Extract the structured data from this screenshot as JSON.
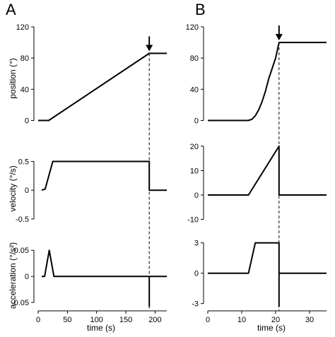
{
  "panels": [
    {
      "letter": "A",
      "xlabel": "time (s)"
    },
    {
      "letter": "B",
      "xlabel": "time (s)"
    }
  ],
  "row_labels": [
    "position (°)",
    "velocity (°/s)",
    "acceleration (°/s²)"
  ],
  "colors": {
    "line": "#000000",
    "background": "#ffffff"
  },
  "chart_data": [
    {
      "type": "line",
      "panel": "A",
      "row": "position",
      "ylabel": "position (°)",
      "xlabel": "",
      "xlim": [
        0,
        220
      ],
      "ylim": [
        -5,
        120
      ],
      "xticks": [
        0,
        50,
        100,
        150,
        200
      ],
      "xtick_labels": [],
      "yticks": [
        0,
        40,
        80,
        120
      ],
      "ytick_labels": [
        "0",
        "40",
        "80",
        "120"
      ],
      "series": [
        {
          "x": [
            0,
            10,
            18,
            190,
            220
          ],
          "y": [
            0,
            0,
            0,
            86,
            86
          ]
        }
      ],
      "marker": {
        "x": 190,
        "label": "arrow"
      }
    },
    {
      "type": "line",
      "panel": "A",
      "row": "velocity",
      "ylabel": "velocity (°/s)",
      "xlabel": "",
      "xlim": [
        0,
        220
      ],
      "ylim": [
        -0.55,
        0.85
      ],
      "xticks": [
        0,
        50,
        100,
        150,
        200
      ],
      "xtick_labels": [],
      "yticks": [
        -0.5,
        0,
        0.5
      ],
      "ytick_labels": [
        "-0.5",
        "0",
        "0.5"
      ],
      "series": [
        {
          "x": [
            6,
            12,
            25,
            190,
            190,
            220
          ],
          "y": [
            0,
            0.02,
            0.5,
            0.5,
            0,
            0
          ]
        }
      ],
      "marker": {
        "x": 190
      }
    },
    {
      "type": "line",
      "panel": "A",
      "row": "acceleration",
      "ylabel": "acceleration (°/s²)",
      "xlabel": "time (s)",
      "xlim": [
        0,
        220
      ],
      "ylim": [
        -0.058,
        0.072
      ],
      "xticks": [
        0,
        50,
        100,
        150,
        200
      ],
      "xtick_labels": [
        "0",
        "50",
        "100",
        "150",
        "200"
      ],
      "yticks": [
        -0.05,
        0,
        0.05
      ],
      "ytick_labels": [
        "-0.05",
        "0",
        "0.05"
      ],
      "series": [
        {
          "x": [
            6,
            11,
            19,
            27,
            190,
            220
          ],
          "y": [
            0,
            0,
            0.05,
            0,
            0,
            0
          ]
        },
        {
          "x": [
            190,
            190
          ],
          "y": [
            0,
            -0.058
          ]
        }
      ],
      "marker": {
        "x": 190
      }
    },
    {
      "type": "line",
      "panel": "B",
      "row": "position",
      "ylabel": "",
      "xlabel": "",
      "xlim": [
        0,
        35
      ],
      "ylim": [
        -5,
        120
      ],
      "xticks": [
        0,
        10,
        20,
        30
      ],
      "xtick_labels": [],
      "yticks": [
        0,
        40,
        80,
        120
      ],
      "ytick_labels": [
        "0",
        "40",
        "80",
        "120"
      ],
      "series": [
        {
          "x": [
            0,
            12,
            13,
            14,
            15,
            16,
            17,
            18,
            19,
            20,
            21,
            35
          ],
          "y": [
            0,
            0,
            1.5,
            6,
            13.5,
            24,
            37.5,
            54,
            67,
            80,
            100,
            100
          ]
        }
      ],
      "marker": {
        "x": 21,
        "label": "arrow"
      }
    },
    {
      "type": "line",
      "panel": "B",
      "row": "velocity",
      "ylabel": "",
      "xlabel": "",
      "xlim": [
        0,
        35
      ],
      "ylim": [
        -11,
        22
      ],
      "xticks": [
        0,
        10,
        20,
        30
      ],
      "xtick_labels": [],
      "yticks": [
        -10,
        0,
        10,
        20
      ],
      "ytick_labels": [
        "-10",
        "0",
        "10",
        "20"
      ],
      "series": [
        {
          "x": [
            0,
            12,
            21,
            21,
            35
          ],
          "y": [
            0,
            0,
            20,
            0,
            0
          ]
        }
      ],
      "marker": {
        "x": 21
      }
    },
    {
      "type": "line",
      "panel": "B",
      "row": "acceleration",
      "ylabel": "",
      "xlabel": "time (s)",
      "xlim": [
        0,
        35
      ],
      "ylim": [
        -3.3,
        3.4
      ],
      "xticks": [
        0,
        10,
        20,
        30
      ],
      "xtick_labels": [
        "0",
        "10",
        "20",
        "30"
      ],
      "yticks": [
        -3,
        0,
        3
      ],
      "ytick_labels": [
        "-3",
        "0",
        "3"
      ],
      "series": [
        {
          "x": [
            0,
            12,
            14,
            21,
            21,
            35
          ],
          "y": [
            0,
            0,
            3,
            3,
            0,
            0
          ]
        },
        {
          "x": [
            21,
            21
          ],
          "y": [
            0,
            -3.3
          ]
        }
      ],
      "marker": {
        "x": 21
      }
    }
  ]
}
